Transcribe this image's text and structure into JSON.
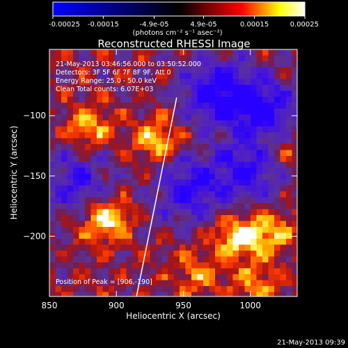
{
  "colorbar": {
    "ticks": [
      "-0.00025",
      "-0.00015",
      "-4.9e-05",
      "4.9e-05",
      "0.00015",
      "0.00025"
    ],
    "tick_values": [
      -0.00025,
      -0.00015,
      -4.9e-05,
      4.9e-05,
      0.00015,
      0.00025
    ],
    "range": [
      -0.00025,
      0.00025
    ],
    "units": "(photons cm⁻² s⁻¹ asec⁻²)",
    "colormap": [
      "#0000ff",
      "#000000",
      "#ff0000",
      "#ffff00",
      "#ffffff"
    ]
  },
  "chart_data": {
    "type": "heatmap",
    "title": "Reconstructed RHESSI Image",
    "xlabel": "Heliocentric X (arcsec)",
    "ylabel": "Heliocentric Y (arcsec)",
    "xlim": [
      850,
      1035
    ],
    "ylim": [
      -250,
      -45
    ],
    "x_ticks": [
      850,
      900,
      950,
      1000
    ],
    "y_ticks": [
      -100,
      -150,
      -200
    ],
    "limb_line": {
      "x": [
        945,
        915
      ],
      "y": [
        -85,
        -250
      ]
    },
    "bright_regions": [
      {
        "x": 892,
        "y": -185,
        "intensity": 1.0
      },
      {
        "x": 990,
        "y": -200,
        "intensity": 0.95
      },
      {
        "x": 1015,
        "y": -195,
        "intensity": 0.7
      },
      {
        "x": 930,
        "y": -120,
        "intensity": 0.75
      },
      {
        "x": 880,
        "y": -110,
        "intensity": 0.65
      },
      {
        "x": 1005,
        "y": -240,
        "intensity": 0.6
      },
      {
        "x": 960,
        "y": -230,
        "intensity": 0.55
      },
      {
        "x": 1025,
        "y": -130,
        "intensity": 0.5
      }
    ],
    "dark_regions": [
      {
        "x": 975,
        "y": -80,
        "intensity": 1.0
      },
      {
        "x": 1010,
        "y": -95,
        "intensity": 0.9
      },
      {
        "x": 955,
        "y": -160,
        "intensity": 0.85
      },
      {
        "x": 870,
        "y": -155,
        "intensity": 0.7
      },
      {
        "x": 1000,
        "y": -145,
        "intensity": 0.8
      }
    ]
  },
  "annotations": {
    "time_range": "21-May-2013 03:46:56.000 to 03:50:52.000",
    "detectors": "Detectors: 3F 5F 6F 7F 8F 9F, Att 0",
    "energy": "Energy Range: 25.0 - 50.0 keV",
    "method": "Clean     Total counts: 6.07E+03",
    "peak": "Position of Peak = [906,-190]"
  },
  "footer": {
    "timestamp": "21-May-2013 09:39"
  }
}
